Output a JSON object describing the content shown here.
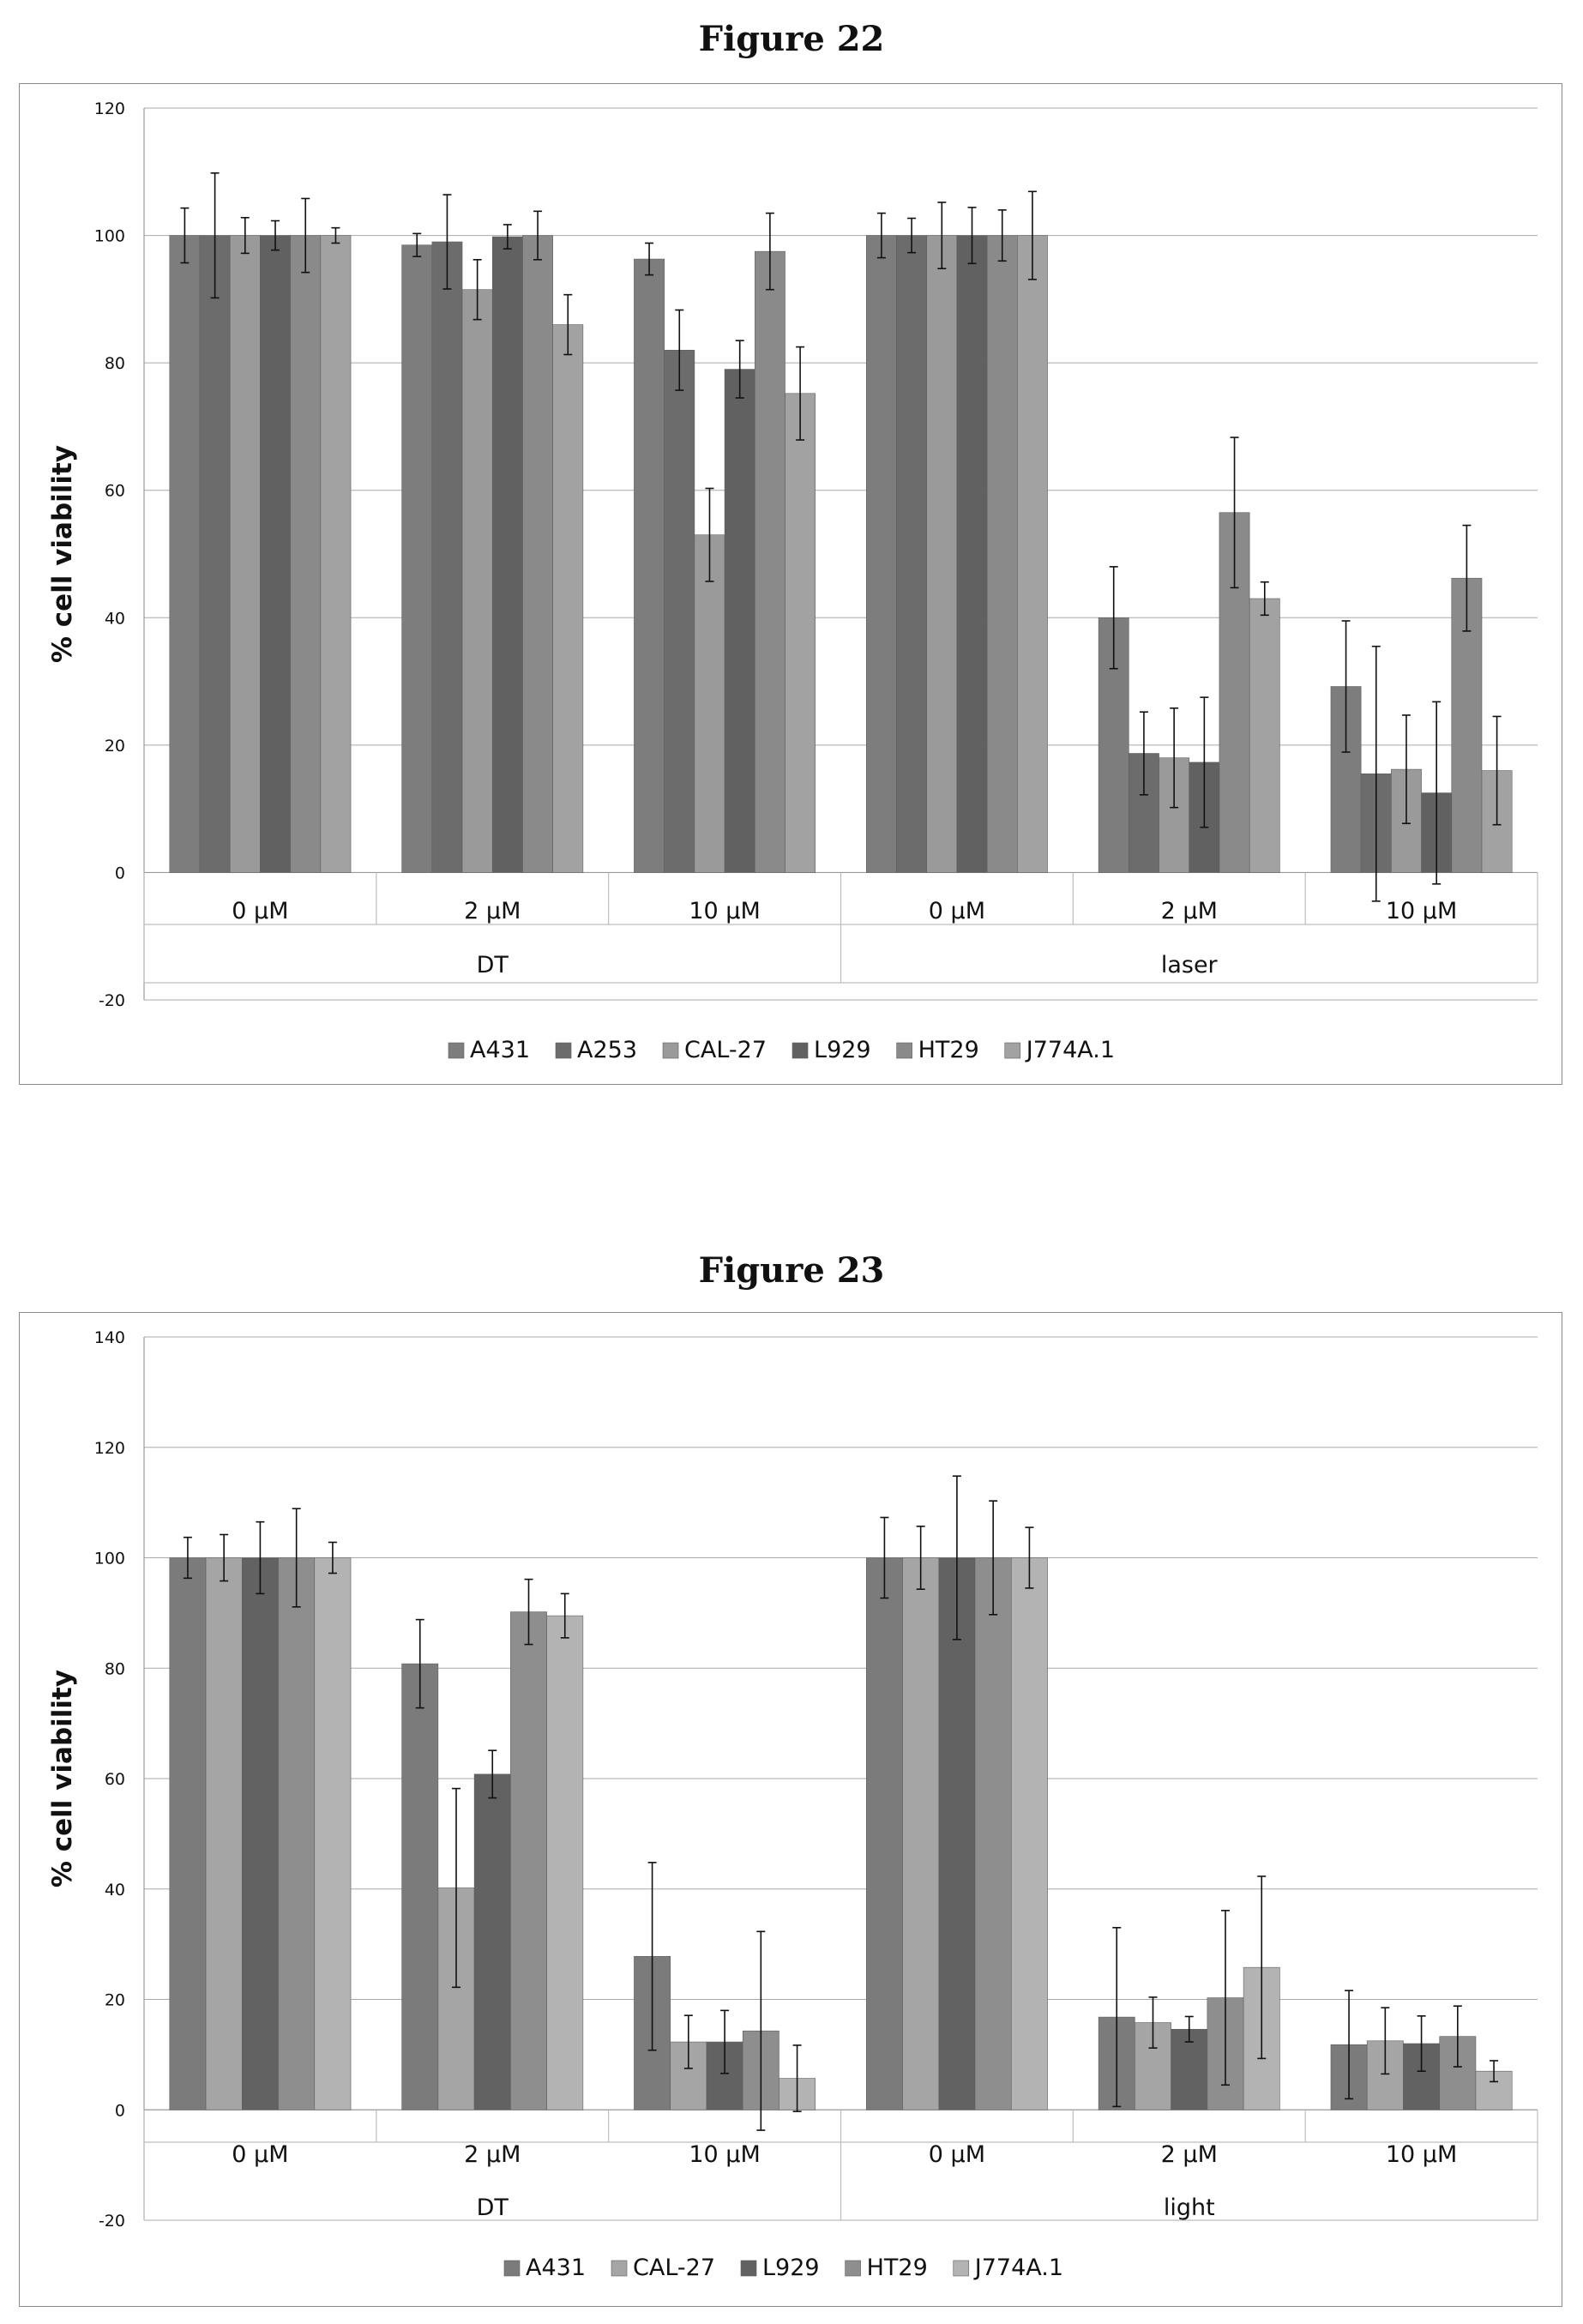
{
  "figures": {
    "fig22": {
      "title": "Figure 22"
    },
    "fig23": {
      "title": "Figure 23"
    }
  },
  "chart_data": [
    {
      "type": "bar",
      "ylabel": "% cell viability",
      "xlabel": "",
      "ylim": [
        -20,
        120
      ],
      "yticks": [
        -20,
        0,
        20,
        40,
        60,
        80,
        100,
        120
      ],
      "grid": true,
      "legend_position": "bottom",
      "categories": [
        "0 µM",
        "2 µM",
        "10 µM",
        "0 µM",
        "2 µM",
        "10 µM"
      ],
      "groups": [
        {
          "label": "DT",
          "categories": [
            0,
            1,
            2
          ]
        },
        {
          "label": "laser",
          "categories": [
            3,
            4,
            5
          ]
        }
      ],
      "series": [
        {
          "name": "A431",
          "color": "#7d7d7d",
          "values": [
            100,
            98.5,
            96.3,
            100,
            40.0,
            29.2
          ],
          "errors": [
            4.3,
            1.8,
            2.5,
            3.5,
            8.0,
            10.3
          ]
        },
        {
          "name": "A253",
          "color": "#6c6c6c",
          "values": [
            100,
            99.0,
            82.0,
            100,
            18.7,
            15.5
          ],
          "errors": [
            9.8,
            7.4,
            6.3,
            2.7,
            6.5,
            20.0
          ]
        },
        {
          "name": "CAL-27",
          "color": "#9a9a9a",
          "values": [
            100,
            91.5,
            53.0,
            100,
            18.0,
            16.2
          ],
          "errors": [
            2.8,
            4.7,
            7.3,
            5.2,
            7.8,
            8.5
          ]
        },
        {
          "name": "L929",
          "color": "#616161",
          "values": [
            100,
            99.8,
            79.0,
            100,
            17.3,
            12.5
          ],
          "errors": [
            2.3,
            1.9,
            4.5,
            4.4,
            10.2,
            14.3
          ]
        },
        {
          "name": "HT29",
          "color": "#8a8a8a",
          "values": [
            100,
            100,
            97.5,
            100,
            56.5,
            46.2
          ],
          "errors": [
            5.8,
            3.8,
            6.0,
            4.0,
            11.8,
            8.3
          ]
        },
        {
          "name": "J774A.1",
          "color": "#a2a2a2",
          "values": [
            100,
            86.0,
            75.2,
            100,
            43.0,
            16.0
          ],
          "errors": [
            1.2,
            4.7,
            7.3,
            6.9,
            2.6,
            8.5
          ]
        }
      ]
    },
    {
      "type": "bar",
      "ylabel": "% cell viability",
      "xlabel": "",
      "ylim": [
        -20,
        140
      ],
      "yticks": [
        -20,
        0,
        20,
        40,
        60,
        80,
        100,
        120,
        140
      ],
      "grid": true,
      "legend_position": "bottom",
      "categories": [
        "0 µM",
        "2 µM",
        "10 µM",
        "0 µM",
        "2 µM",
        "10 µM"
      ],
      "groups": [
        {
          "label": "DT",
          "categories": [
            0,
            1,
            2
          ]
        },
        {
          "label": "light",
          "categories": [
            3,
            4,
            5
          ]
        }
      ],
      "series": [
        {
          "name": "A431",
          "color": "#7b7b7b",
          "values": [
            100,
            80.8,
            27.8,
            100,
            16.8,
            11.8
          ],
          "errors": [
            3.7,
            8.0,
            17.0,
            7.3,
            16.2,
            9.8
          ]
        },
        {
          "name": "CAL-27",
          "color": "#a5a5a5",
          "values": [
            100,
            40.2,
            12.3,
            100,
            15.8,
            12.5
          ],
          "errors": [
            4.2,
            18.0,
            4.8,
            5.7,
            4.6,
            6.0
          ]
        },
        {
          "name": "L929",
          "color": "#626262",
          "values": [
            100,
            60.8,
            12.3,
            100,
            14.6,
            12.0
          ],
          "errors": [
            6.5,
            4.3,
            5.7,
            14.8,
            2.3,
            5.0
          ]
        },
        {
          "name": "HT29",
          "color": "#8e8e8e",
          "values": [
            100,
            90.2,
            14.3,
            100,
            20.3,
            13.3
          ],
          "errors": [
            8.9,
            5.9,
            18.0,
            10.3,
            15.8,
            5.5
          ]
        },
        {
          "name": "J774A.1",
          "color": "#b3b3b3",
          "values": [
            100,
            89.5,
            5.7,
            100,
            25.8,
            7.0
          ],
          "errors": [
            2.8,
            4.0,
            6.0,
            5.5,
            16.5,
            1.9
          ]
        }
      ]
    }
  ]
}
